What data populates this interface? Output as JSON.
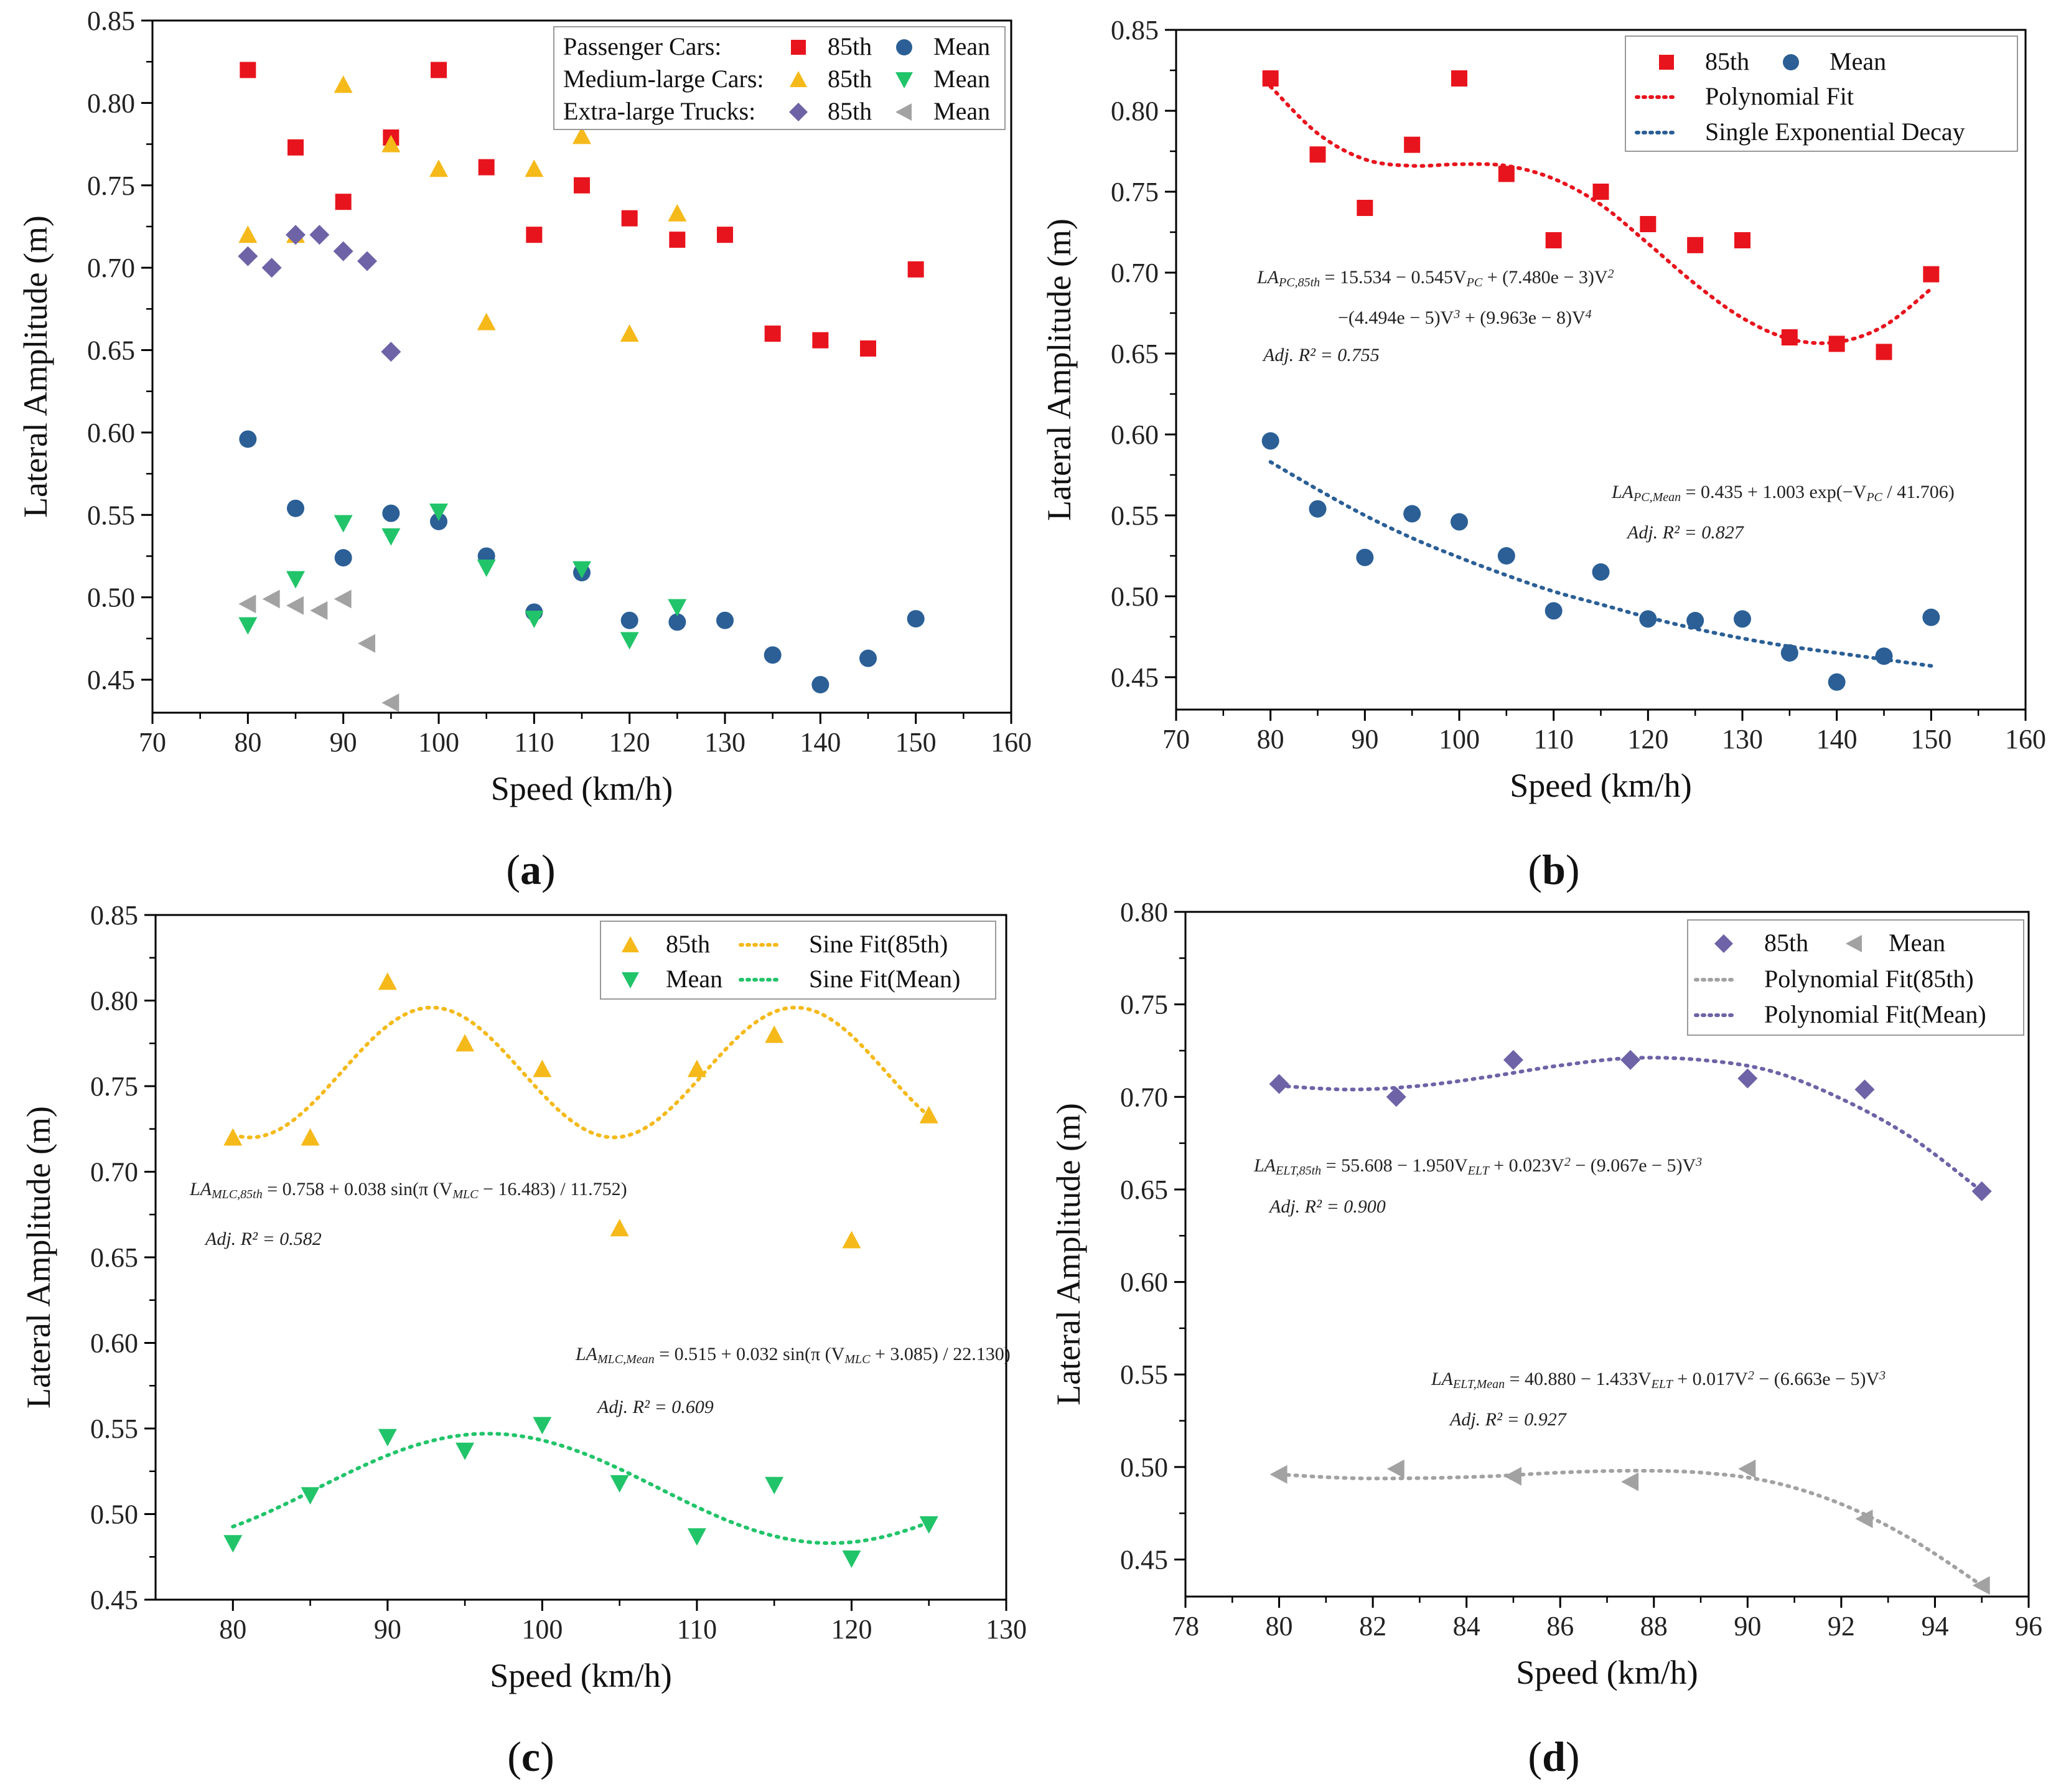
{
  "figure": {
    "panels": [
      {
        "id": "a",
        "caption_letter": "a"
      },
      {
        "id": "b",
        "caption_letter": "b"
      },
      {
        "id": "c",
        "caption_letter": "c"
      },
      {
        "id": "d",
        "caption_letter": "d"
      }
    ]
  },
  "chart_data": [
    {
      "panel": "a",
      "type": "scatter",
      "xlabel": "Speed (km/h)",
      "ylabel": "Lateral Amplitude (m)",
      "xlim": [
        70,
        160
      ],
      "ylim": [
        0.43,
        0.85
      ],
      "xticks": [
        "70",
        "80",
        "90",
        "100",
        "110",
        "120",
        "130",
        "140",
        "150",
        "160"
      ],
      "yticks": [
        "0.45",
        "0.50",
        "0.55",
        "0.60",
        "0.65",
        "0.70",
        "0.75",
        "0.80",
        "0.85"
      ],
      "legend": {
        "position": "top-right",
        "groups": [
          "Passenger Cars:",
          "Medium-large Cars:",
          "Extra-large Trucks:"
        ],
        "entries": [
          {
            "label": "85th",
            "series": "pc85"
          },
          {
            "label": "Mean",
            "series": "pcmean"
          },
          {
            "label": "85th",
            "series": "mlc85"
          },
          {
            "label": "Mean",
            "series": "mlcmean"
          },
          {
            "label": "85th",
            "series": "elt85"
          },
          {
            "label": "Mean",
            "series": "eltmean"
          }
        ]
      },
      "series": [
        {
          "id": "pc85",
          "name": "Passenger Cars 85th",
          "marker": "square",
          "color": "#e8141d",
          "x": [
            80,
            85,
            90,
            95,
            100,
            105,
            110,
            115,
            120,
            125,
            130,
            135,
            140,
            145,
            150
          ],
          "y": [
            0.82,
            0.773,
            0.74,
            0.779,
            0.82,
            0.761,
            0.72,
            0.75,
            0.73,
            0.717,
            0.72,
            0.66,
            0.656,
            0.651,
            0.699
          ]
        },
        {
          "id": "pcmean",
          "name": "Passenger Cars Mean",
          "marker": "circle",
          "color": "#2b5f96",
          "x": [
            80,
            85,
            90,
            95,
            100,
            105,
            110,
            115,
            120,
            125,
            130,
            135,
            140,
            145,
            150
          ],
          "y": [
            0.596,
            0.554,
            0.524,
            0.551,
            0.546,
            0.525,
            0.491,
            0.515,
            0.486,
            0.485,
            0.486,
            0.465,
            0.447,
            0.463,
            0.487
          ]
        },
        {
          "id": "mlc85",
          "name": "Medium-large Cars 85th",
          "marker": "triangle-up",
          "color": "#f5b91a",
          "x": [
            80,
            85,
            90,
            95,
            100,
            110,
            115,
            105,
            120,
            125
          ],
          "y": [
            0.72,
            0.72,
            0.811,
            0.775,
            0.76,
            0.76,
            0.78,
            0.667,
            0.66,
            0.733
          ]
        },
        {
          "id": "mlcmean",
          "name": "Medium-large Cars Mean",
          "marker": "triangle-down",
          "color": "#22c46a",
          "x": [
            80,
            85,
            90,
            95,
            100,
            105,
            110,
            115,
            120,
            125
          ],
          "y": [
            0.483,
            0.511,
            0.545,
            0.537,
            0.552,
            0.518,
            0.487,
            0.517,
            0.474,
            0.494
          ]
        },
        {
          "id": "elt85",
          "name": "Extra-large Trucks 85th",
          "marker": "diamond",
          "color": "#6e63a6",
          "x": [
            80,
            82.5,
            85,
            87.5,
            90,
            92.5,
            95
          ],
          "y": [
            0.707,
            0.7,
            0.72,
            0.72,
            0.71,
            0.704,
            0.649
          ]
        },
        {
          "id": "eltmean",
          "name": "Extra-large Trucks Mean",
          "marker": "triangle-left",
          "color": "#a2a2a2",
          "x": [
            80,
            82.5,
            85,
            87.5,
            90,
            92.5,
            95
          ],
          "y": [
            0.496,
            0.499,
            0.495,
            0.492,
            0.499,
            0.472,
            0.436
          ]
        }
      ]
    },
    {
      "panel": "b",
      "type": "scatter",
      "xlabel": "Speed (km/h)",
      "ylabel": "Lateral Amplitude (m)",
      "xlim": [
        70,
        160
      ],
      "ylim": [
        0.43,
        0.85
      ],
      "xticks": [
        "70",
        "80",
        "90",
        "100",
        "110",
        "120",
        "130",
        "140",
        "150",
        "160"
      ],
      "yticks": [
        "0.45",
        "0.50",
        "0.55",
        "0.60",
        "0.65",
        "0.70",
        "0.75",
        "0.80",
        "0.85"
      ],
      "legend": {
        "position": "top-right",
        "entries": [
          {
            "label": "85th",
            "series": "pc85"
          },
          {
            "label": "Mean",
            "series": "pcmean"
          },
          {
            "label": "Polynomial Fit",
            "series": "polyfit"
          },
          {
            "label": "Single Exponential Decay",
            "series": "expfit"
          }
        ]
      },
      "series": [
        {
          "id": "pc85",
          "name": "85th",
          "marker": "square",
          "color": "#e8141d",
          "x": [
            80,
            85,
            90,
            95,
            100,
            105,
            110,
            115,
            120,
            125,
            130,
            135,
            140,
            145,
            150
          ],
          "y": [
            0.82,
            0.773,
            0.74,
            0.779,
            0.82,
            0.761,
            0.72,
            0.75,
            0.73,
            0.717,
            0.72,
            0.66,
            0.656,
            0.651,
            0.699
          ]
        },
        {
          "id": "pcmean",
          "name": "Mean",
          "marker": "circle",
          "color": "#2b5f96",
          "x": [
            80,
            85,
            90,
            95,
            100,
            105,
            110,
            115,
            120,
            125,
            130,
            135,
            140,
            145,
            150
          ],
          "y": [
            0.596,
            0.554,
            0.524,
            0.551,
            0.546,
            0.525,
            0.491,
            0.515,
            0.486,
            0.485,
            0.486,
            0.465,
            0.447,
            0.463,
            0.487
          ]
        },
        {
          "id": "polyfit",
          "name": "Polynomial Fit",
          "line": "dotted",
          "color": "#e8141d",
          "x": [
            80,
            85,
            90,
            95,
            100,
            105,
            110,
            115,
            120,
            125,
            130,
            135,
            140,
            145,
            150
          ],
          "y": [
            0.815,
            0.786,
            0.77,
            0.766,
            0.767,
            0.766,
            0.758,
            0.742,
            0.718,
            0.693,
            0.672,
            0.659,
            0.657,
            0.667,
            0.69
          ]
        },
        {
          "id": "expfit",
          "name": "Single Exponential Decay",
          "line": "dotted",
          "color": "#2b5f96",
          "x": [
            80,
            85,
            90,
            95,
            100,
            105,
            110,
            115,
            120,
            125,
            130,
            135,
            140,
            145,
            150
          ],
          "y": [
            0.583,
            0.566,
            0.55,
            0.536,
            0.524,
            0.513,
            0.503,
            0.495,
            0.487,
            0.48,
            0.474,
            0.469,
            0.465,
            0.461,
            0.457
          ]
        }
      ],
      "annotations": [
        {
          "text": "LA_PC,85th = 15.534 − 0.545V_PC + (7.480e−3)V_PC² − (4.494e−5)V_PC³ + (9.963e−8)V_PC⁴"
        },
        {
          "text": "Adj. R² = 0.755"
        },
        {
          "text": "LA_PC,Mean = 0.435 + 1.003 exp(−V_PC / 41.706)"
        },
        {
          "text": "Adj. R² = 0.827"
        }
      ]
    },
    {
      "panel": "c",
      "type": "scatter",
      "xlabel": "Speed (km/h)",
      "ylabel": "Lateral Amplitude (m)",
      "xlim": [
        75,
        130
      ],
      "ylim": [
        0.45,
        0.85
      ],
      "xticks": [
        "80",
        "90",
        "100",
        "110",
        "120",
        "130"
      ],
      "yticks": [
        "0.45",
        "0.50",
        "0.55",
        "0.60",
        "0.65",
        "0.70",
        "0.75",
        "0.80",
        "0.85"
      ],
      "legend": {
        "position": "top-right",
        "entries": [
          {
            "label": "85th",
            "series": "mlc85"
          },
          {
            "label": "Sine Fit(85th)",
            "series": "sine85"
          },
          {
            "label": "Mean",
            "series": "mlcmean"
          },
          {
            "label": "Sine Fit(Mean)",
            "series": "sinemean"
          }
        ]
      },
      "series": [
        {
          "id": "mlc85",
          "name": "85th",
          "marker": "triangle-up",
          "color": "#f5b91a",
          "x": [
            80,
            85,
            90,
            95,
            100,
            105,
            110,
            115,
            120,
            125
          ],
          "y": [
            0.72,
            0.72,
            0.811,
            0.775,
            0.76,
            0.667,
            0.76,
            0.78,
            0.66,
            0.733
          ]
        },
        {
          "id": "mlcmean",
          "name": "Mean",
          "marker": "triangle-down",
          "color": "#22c46a",
          "x": [
            80,
            85,
            90,
            95,
            100,
            105,
            110,
            115,
            120,
            125
          ],
          "y": [
            0.483,
            0.511,
            0.545,
            0.537,
            0.552,
            0.518,
            0.487,
            0.517,
            0.474,
            0.494
          ]
        },
        {
          "id": "sine85",
          "name": "Sine Fit(85th)",
          "line": "dotted",
          "color": "#f5b91a",
          "function": "0.758+0.038*sin(pi*(x-16.483)/11.752)"
        },
        {
          "id": "sinemean",
          "name": "Sine Fit(Mean)",
          "line": "dotted",
          "color": "#22c46a",
          "function": "0.515+0.032*sin(pi*(x+3.085)/22.130)"
        }
      ],
      "annotations": [
        {
          "text": "LA_MLC,85th = 0.758 + 0.038 sin(π (V_MLC − 16.483) / 11.752)"
        },
        {
          "text": "Adj. R² = 0.582"
        },
        {
          "text": "LA_MLC,Mean = 0.515 + 0.032 sin(π (V_MLC + 3.085) / 22.130)"
        },
        {
          "text": "Adj. R² = 0.609"
        }
      ]
    },
    {
      "panel": "d",
      "type": "scatter",
      "xlabel": "Speed (km/h)",
      "ylabel": "Lateral Amplitude (m)",
      "xlim": [
        78,
        96
      ],
      "ylim": [
        0.43,
        0.8
      ],
      "xticks": [
        "78",
        "80",
        "82",
        "84",
        "86",
        "88",
        "90",
        "92",
        "94",
        "96"
      ],
      "yticks": [
        "0.45",
        "0.50",
        "0.55",
        "0.60",
        "0.65",
        "0.70",
        "0.75",
        "0.80"
      ],
      "legend": {
        "position": "top-right",
        "entries": [
          {
            "label": "85th",
            "series": "elt85"
          },
          {
            "label": "Mean",
            "series": "eltmean"
          },
          {
            "label": "Polynomial Fit(85th)",
            "series": "poly85"
          },
          {
            "label": "Polynomial Fit(Mean)",
            "series": "polymean"
          }
        ]
      },
      "series": [
        {
          "id": "elt85",
          "name": "85th",
          "marker": "diamond",
          "color": "#6e63a6",
          "x": [
            80,
            82.5,
            85,
            87.5,
            90,
            92.5,
            95
          ],
          "y": [
            0.707,
            0.7,
            0.72,
            0.72,
            0.71,
            0.704,
            0.649
          ]
        },
        {
          "id": "eltmean",
          "name": "Mean",
          "marker": "triangle-left",
          "color": "#a2a2a2",
          "x": [
            80,
            82.5,
            85,
            87.5,
            90,
            92.5,
            95
          ],
          "y": [
            0.496,
            0.499,
            0.495,
            0.492,
            0.499,
            0.472,
            0.436
          ]
        },
        {
          "id": "poly85",
          "name": "Polynomial Fit(85th)",
          "line": "dotted",
          "color": "#a2a2a2",
          "x": [
            80,
            81.5,
            83,
            84.5,
            86,
            87.5,
            89,
            90.5,
            92,
            93.5,
            95
          ],
          "y": [
            0.496,
            0.494,
            0.494,
            0.495,
            0.497,
            0.498,
            0.497,
            0.492,
            0.48,
            0.461,
            0.436
          ]
        },
        {
          "id": "polymean",
          "name": "Polynomial Fit(Mean)",
          "line": "dotted",
          "color": "#6e63a6",
          "x": [
            80,
            81.5,
            83,
            84.5,
            86,
            87.5,
            89,
            90.5,
            92,
            93.5,
            95
          ],
          "y": [
            0.706,
            0.704,
            0.706,
            0.711,
            0.717,
            0.721,
            0.72,
            0.714,
            0.699,
            0.678,
            0.649
          ]
        }
      ],
      "annotations": [
        {
          "text": "LA_ELT,85th = 55.608 − 1.950V_ELT + 0.023V_ELT² − (9.067e−5)V_ELT³"
        },
        {
          "text": "Adj. R² = 0.900"
        },
        {
          "text": "LA_ELT,Mean = 40.880 − 1.433V_ELT + 0.017V_ELT² − (6.663e−5)V_ELT³"
        },
        {
          "text": "Adj. R² = 0.927"
        }
      ]
    }
  ]
}
